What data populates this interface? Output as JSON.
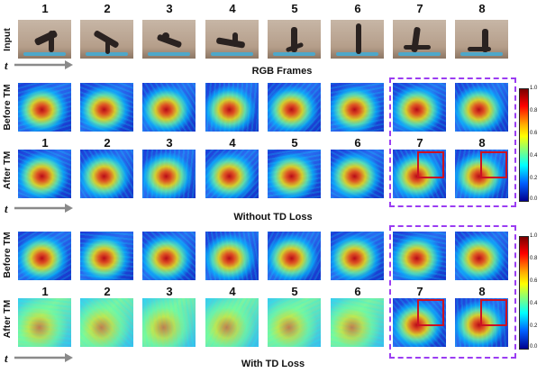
{
  "frame_numbers": [
    "1",
    "2",
    "3",
    "4",
    "5",
    "6",
    "7",
    "8"
  ],
  "row_labels": {
    "input": "Input",
    "before_tm": "Before TM",
    "after_tm": "After TM",
    "time": "t"
  },
  "captions": {
    "rgb": "RGB Frames",
    "without_td": "Without TD Loss",
    "with_td": "With TD Loss"
  },
  "colorbar_ticks": [
    "1.0",
    "0.8",
    "0.6",
    "0.4",
    "0.2",
    "0.0"
  ],
  "colors": {
    "highlight_dash": "#9b3df2",
    "region_box": "#cc1122"
  }
}
